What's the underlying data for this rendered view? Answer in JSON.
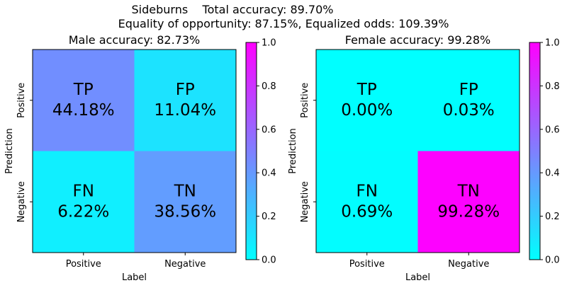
{
  "title_line1": "Sideburns    Total accuracy: 89.70%",
  "title_line2": "Equality of opportunity: 87.15%, Equalized odds: 109.39%",
  "chart_data": [
    {
      "type": "heatmap",
      "title": "Male accuracy: 82.73%",
      "xlabel": "Label",
      "ylabel": "Prediction",
      "x_categories": [
        "Positive",
        "Negative"
      ],
      "y_categories": [
        "Positive",
        "Negative"
      ],
      "cells": [
        {
          "label": "TP",
          "text": "44.18%",
          "value": 0.4418
        },
        {
          "label": "FP",
          "text": "11.04%",
          "value": 0.1104
        },
        {
          "label": "FN",
          "text": "6.22%",
          "value": 0.0622
        },
        {
          "label": "TN",
          "text": "38.56%",
          "value": 0.3856
        }
      ],
      "colorbar": {
        "range": [
          0,
          1
        ],
        "ticks": [
          "0.0",
          "0.2",
          "0.4",
          "0.6",
          "0.8",
          "1.0"
        ],
        "colormap": "cool"
      }
    },
    {
      "type": "heatmap",
      "title": "Female accuracy: 99.28%",
      "xlabel": "Label",
      "ylabel": "Prediction",
      "x_categories": [
        "Positive",
        "Negative"
      ],
      "y_categories": [
        "Positive",
        "Negative"
      ],
      "cells": [
        {
          "label": "TP",
          "text": "0.00%",
          "value": 0.0
        },
        {
          "label": "FP",
          "text": "0.03%",
          "value": 0.0003
        },
        {
          "label": "FN",
          "text": "0.69%",
          "value": 0.0069
        },
        {
          "label": "TN",
          "text": "99.28%",
          "value": 0.9928
        }
      ],
      "colorbar": {
        "range": [
          0,
          1
        ],
        "ticks": [
          "0.0",
          "0.2",
          "0.4",
          "0.6",
          "0.8",
          "1.0"
        ],
        "colormap": "cool"
      }
    }
  ]
}
